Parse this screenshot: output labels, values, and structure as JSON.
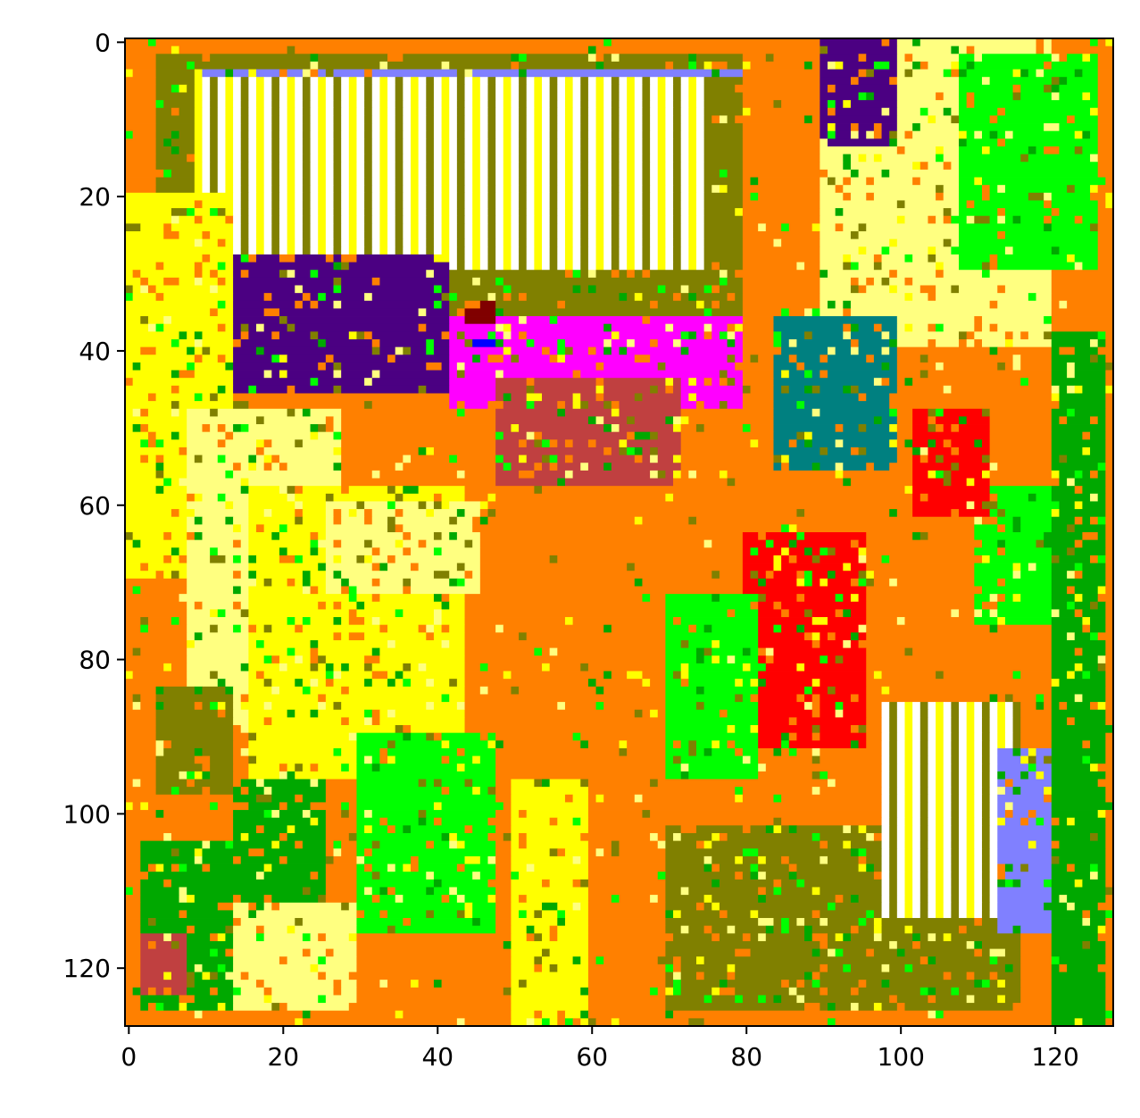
{
  "chart_data": {
    "type": "heatmap",
    "title": "",
    "xlabel": "",
    "ylabel": "",
    "grid": false,
    "legend": "none",
    "grid_size": [
      128,
      128
    ],
    "xlim": [
      -0.5,
      127.5
    ],
    "ylim": [
      127.5,
      -0.5
    ],
    "x_ticks": [
      0,
      20,
      40,
      60,
      80,
      100,
      120
    ],
    "y_ticks": [
      0,
      20,
      40,
      60,
      80,
      100,
      120
    ],
    "x_tick_labels": [
      "0",
      "20",
      "40",
      "60",
      "80",
      "100",
      "120"
    ],
    "y_tick_labels": [
      "0",
      "20",
      "40",
      "60",
      "80",
      "100",
      "120"
    ],
    "palette": {
      "orange": "#ff8000",
      "olive": "#808000",
      "yellow": "#ffff00",
      "light_yellow": "#ffff80",
      "white": "#ffffff",
      "green": "#00a800",
      "lime": "#00ff00",
      "teal": "#008080",
      "red": "#ff0000",
      "brick": "#c04040",
      "magenta": "#ff00ff",
      "indigo": "#4b0082",
      "periwinkle": "#8080ff",
      "pink": "#ffc0cb",
      "maroon": "#800000",
      "blue": "#0000ff",
      "gray": "#808080"
    },
    "background_class": "orange",
    "regions": [
      {
        "cls": "olive",
        "x": [
          4,
          80
        ],
        "y": [
          2,
          36
        ]
      },
      {
        "cls": "white",
        "x": [
          9,
          76
        ],
        "y": [
          4,
          30
        ],
        "stripes": "vertical"
      },
      {
        "cls": "periwinkle",
        "x": [
          10,
          80
        ],
        "y": [
          4,
          5
        ]
      },
      {
        "cls": "yellow",
        "x": [
          0,
          14
        ],
        "y": [
          20,
          70
        ]
      },
      {
        "cls": "light_yellow",
        "x": [
          8,
          28
        ],
        "y": [
          48,
          90
        ]
      },
      {
        "cls": "yellow",
        "x": [
          16,
          44
        ],
        "y": [
          58,
          96
        ]
      },
      {
        "cls": "light_yellow",
        "x": [
          26,
          46
        ],
        "y": [
          60,
          72
        ]
      },
      {
        "cls": "lime",
        "x": [
          30,
          48
        ],
        "y": [
          90,
          116
        ]
      },
      {
        "cls": "green",
        "x": [
          14,
          26
        ],
        "y": [
          96,
          116
        ]
      },
      {
        "cls": "olive",
        "x": [
          4,
          14
        ],
        "y": [
          84,
          98
        ]
      },
      {
        "cls": "indigo",
        "x": [
          14,
          42
        ],
        "y": [
          28,
          46
        ]
      },
      {
        "cls": "magenta",
        "x": [
          42,
          80
        ],
        "y": [
          36,
          48
        ]
      },
      {
        "cls": "brick",
        "x": [
          48,
          72
        ],
        "y": [
          44,
          58
        ]
      },
      {
        "cls": "maroon",
        "x": [
          44,
          48
        ],
        "y": [
          34,
          37
        ]
      },
      {
        "cls": "blue",
        "x": [
          45,
          49
        ],
        "y": [
          39,
          40
        ]
      },
      {
        "cls": "light_yellow",
        "x": [
          90,
          120
        ],
        "y": [
          0,
          40
        ]
      },
      {
        "cls": "lime",
        "x": [
          108,
          126
        ],
        "y": [
          2,
          30
        ]
      },
      {
        "cls": "indigo",
        "x": [
          90,
          100
        ],
        "y": [
          0,
          14
        ]
      },
      {
        "cls": "teal",
        "x": [
          84,
          100
        ],
        "y": [
          36,
          56
        ]
      },
      {
        "cls": "lime",
        "x": [
          110,
          124
        ],
        "y": [
          58,
          76
        ]
      },
      {
        "cls": "green",
        "x": [
          120,
          127
        ],
        "y": [
          38,
          128
        ]
      },
      {
        "cls": "red",
        "x": [
          80,
          96
        ],
        "y": [
          64,
          92
        ]
      },
      {
        "cls": "red",
        "x": [
          102,
          112
        ],
        "y": [
          48,
          62
        ]
      },
      {
        "cls": "lime",
        "x": [
          70,
          82
        ],
        "y": [
          72,
          96
        ]
      },
      {
        "cls": "olive",
        "x": [
          70,
          116
        ],
        "y": [
          102,
          126
        ]
      },
      {
        "cls": "white",
        "x": [
          98,
          116
        ],
        "y": [
          86,
          114
        ],
        "stripes": "vertical"
      },
      {
        "cls": "periwinkle",
        "x": [
          113,
          120
        ],
        "y": [
          92,
          116
        ]
      },
      {
        "cls": "yellow",
        "x": [
          50,
          60
        ],
        "y": [
          96,
          128
        ]
      },
      {
        "cls": "green",
        "x": [
          2,
          14
        ],
        "y": [
          104,
          126
        ]
      },
      {
        "cls": "brick",
        "x": [
          2,
          8
        ],
        "y": [
          116,
          124
        ]
      },
      {
        "cls": "light_yellow",
        "x": [
          14,
          30
        ],
        "y": [
          112,
          126
        ]
      }
    ]
  }
}
